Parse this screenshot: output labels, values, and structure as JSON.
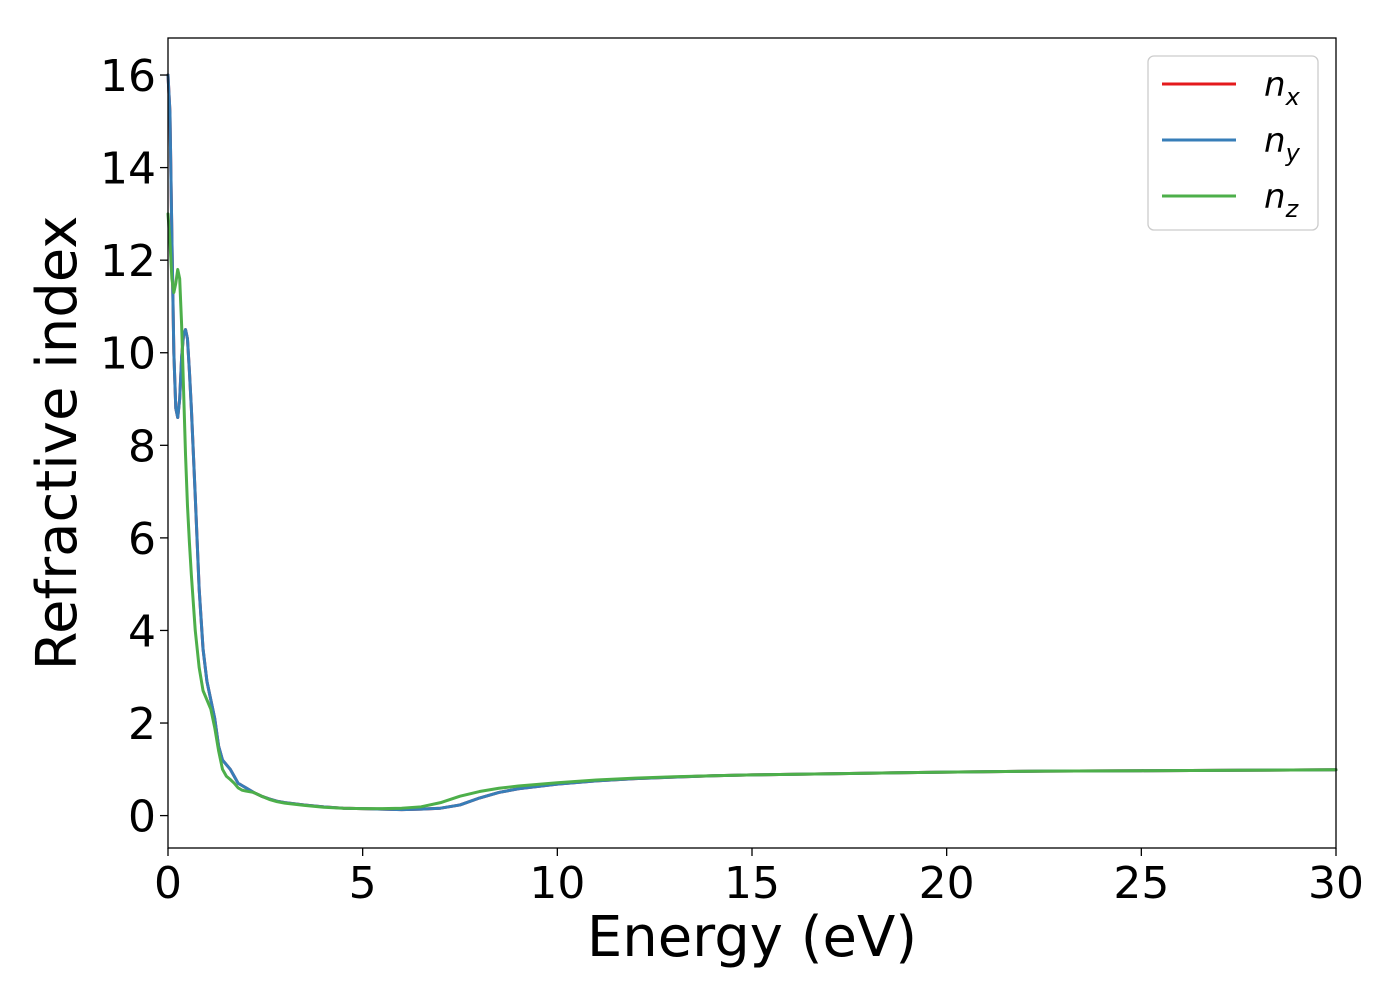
{
  "chart_data": {
    "type": "line",
    "xlabel": "Energy (eV)",
    "ylabel": "Refractive index",
    "xlim": [
      0,
      30
    ],
    "ylim": [
      -0.7,
      16.8
    ],
    "xticks": [
      0,
      5,
      10,
      15,
      20,
      25,
      30
    ],
    "yticks": [
      0,
      2,
      4,
      6,
      8,
      10,
      12,
      14,
      16
    ],
    "grid": false,
    "legend_position": "top-right",
    "x": [
      0,
      0.05,
      0.1,
      0.15,
      0.2,
      0.25,
      0.3,
      0.35,
      0.4,
      0.45,
      0.5,
      0.55,
      0.6,
      0.7,
      0.8,
      0.9,
      1.0,
      1.1,
      1.2,
      1.3,
      1.4,
      1.5,
      1.6,
      1.7,
      1.8,
      1.9,
      2.0,
      2.2,
      2.4,
      2.6,
      2.8,
      3.0,
      3.5,
      4.0,
      4.5,
      5.0,
      5.5,
      6.0,
      6.5,
      7.0,
      7.5,
      8.0,
      8.5,
      9.0,
      10.0,
      11.0,
      12.0,
      13.0,
      14.0,
      15.0,
      17.5,
      20.0,
      22.5,
      25.0,
      27.5,
      30.0
    ],
    "series": [
      {
        "name": "n",
        "subscript": "x",
        "color": "#e41a1c",
        "values": [
          16.0,
          15.2,
          12.5,
          10.0,
          8.8,
          8.6,
          9.0,
          9.9,
          10.4,
          10.5,
          10.3,
          9.6,
          8.8,
          6.9,
          4.9,
          3.6,
          2.9,
          2.5,
          2.1,
          1.5,
          1.2,
          1.1,
          1.0,
          0.85,
          0.7,
          0.65,
          0.6,
          0.5,
          0.42,
          0.36,
          0.31,
          0.28,
          0.23,
          0.19,
          0.16,
          0.15,
          0.14,
          0.13,
          0.14,
          0.16,
          0.23,
          0.38,
          0.5,
          0.58,
          0.68,
          0.75,
          0.8,
          0.83,
          0.86,
          0.88,
          0.91,
          0.94,
          0.96,
          0.97,
          0.98,
          0.99
        ]
      },
      {
        "name": "n",
        "subscript": "y",
        "color": "#377eb8",
        "values": [
          16.0,
          15.2,
          12.5,
          10.0,
          8.8,
          8.6,
          9.0,
          9.9,
          10.4,
          10.5,
          10.3,
          9.6,
          8.8,
          6.9,
          4.9,
          3.6,
          2.9,
          2.5,
          2.1,
          1.5,
          1.2,
          1.1,
          1.0,
          0.85,
          0.7,
          0.65,
          0.6,
          0.5,
          0.42,
          0.36,
          0.31,
          0.28,
          0.23,
          0.19,
          0.16,
          0.15,
          0.14,
          0.13,
          0.14,
          0.16,
          0.23,
          0.38,
          0.5,
          0.58,
          0.68,
          0.75,
          0.8,
          0.83,
          0.86,
          0.88,
          0.91,
          0.94,
          0.96,
          0.97,
          0.98,
          0.99
        ]
      },
      {
        "name": "n",
        "subscript": "z",
        "color": "#4daf4a",
        "values": [
          13.0,
          12.4,
          11.6,
          11.3,
          11.5,
          11.8,
          11.6,
          10.6,
          9.2,
          7.8,
          6.7,
          5.9,
          5.2,
          4.0,
          3.2,
          2.7,
          2.5,
          2.3,
          1.9,
          1.4,
          1.0,
          0.85,
          0.78,
          0.7,
          0.6,
          0.55,
          0.53,
          0.5,
          0.42,
          0.35,
          0.3,
          0.27,
          0.22,
          0.18,
          0.16,
          0.15,
          0.15,
          0.16,
          0.19,
          0.28,
          0.42,
          0.52,
          0.59,
          0.64,
          0.71,
          0.77,
          0.81,
          0.84,
          0.86,
          0.88,
          0.91,
          0.94,
          0.96,
          0.97,
          0.98,
          0.99
        ]
      }
    ]
  }
}
